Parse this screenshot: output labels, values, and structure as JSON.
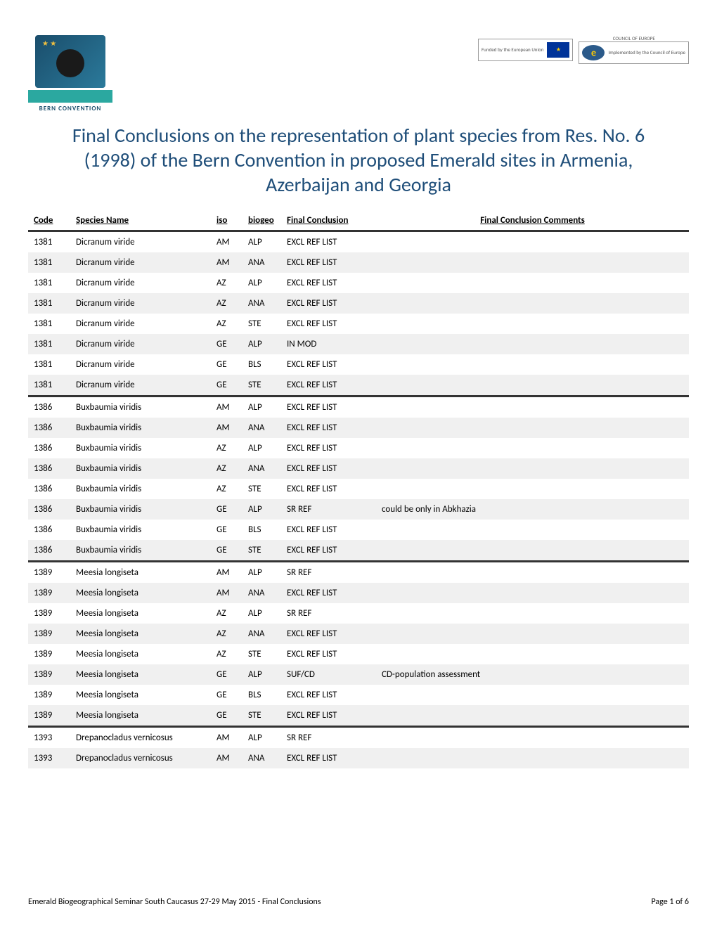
{
  "logos": {
    "left_text": "BERN CONVENTION",
    "right_funded_label": "Funded\nby the European Union",
    "right_coe_top": "COUNCIL OF EUROPE",
    "right_implemented_label": "Implemented\nby the Council of Europe"
  },
  "title": "Final Conclusions on the representation of plant species from Res. No. 6 (1998) of the Bern Convention in proposed Emerald sites in Armenia, Azerbaijan and Georgia",
  "table": {
    "headers": {
      "code": "Code",
      "species": "Species Name",
      "iso": "iso",
      "biogeo": "biogeo",
      "conclusion": "Final Conclusion",
      "comments": "Final Conclusion Comments"
    },
    "rows": [
      {
        "code": "1381",
        "species": "Dicranum viride",
        "iso": "AM",
        "biogeo": "ALP",
        "conclusion": "EXCL REF LIST",
        "comments": "",
        "groupStart": true
      },
      {
        "code": "1381",
        "species": "Dicranum viride",
        "iso": "AM",
        "biogeo": "ANA",
        "conclusion": "EXCL REF LIST",
        "comments": ""
      },
      {
        "code": "1381",
        "species": "Dicranum viride",
        "iso": "AZ",
        "biogeo": "ALP",
        "conclusion": "EXCL REF LIST",
        "comments": ""
      },
      {
        "code": "1381",
        "species": "Dicranum viride",
        "iso": "AZ",
        "biogeo": "ANA",
        "conclusion": "EXCL REF LIST",
        "comments": ""
      },
      {
        "code": "1381",
        "species": "Dicranum viride",
        "iso": "AZ",
        "biogeo": "STE",
        "conclusion": "EXCL REF LIST",
        "comments": ""
      },
      {
        "code": "1381",
        "species": "Dicranum viride",
        "iso": "GE",
        "biogeo": "ALP",
        "conclusion": "IN MOD",
        "comments": ""
      },
      {
        "code": "1381",
        "species": "Dicranum viride",
        "iso": "GE",
        "biogeo": "BLS",
        "conclusion": "EXCL REF LIST",
        "comments": ""
      },
      {
        "code": "1381",
        "species": "Dicranum viride",
        "iso": "GE",
        "biogeo": "STE",
        "conclusion": "EXCL REF LIST",
        "comments": ""
      },
      {
        "code": "1386",
        "species": "Buxbaumia viridis",
        "iso": "AM",
        "biogeo": "ALP",
        "conclusion": "EXCL REF LIST",
        "comments": "",
        "groupStart": true
      },
      {
        "code": "1386",
        "species": "Buxbaumia viridis",
        "iso": "AM",
        "biogeo": "ANA",
        "conclusion": "EXCL REF LIST",
        "comments": ""
      },
      {
        "code": "1386",
        "species": "Buxbaumia viridis",
        "iso": "AZ",
        "biogeo": "ALP",
        "conclusion": "EXCL REF LIST",
        "comments": ""
      },
      {
        "code": "1386",
        "species": "Buxbaumia viridis",
        "iso": "AZ",
        "biogeo": "ANA",
        "conclusion": "EXCL REF LIST",
        "comments": ""
      },
      {
        "code": "1386",
        "species": "Buxbaumia viridis",
        "iso": "AZ",
        "biogeo": "STE",
        "conclusion": "EXCL REF LIST",
        "comments": ""
      },
      {
        "code": "1386",
        "species": "Buxbaumia viridis",
        "iso": "GE",
        "biogeo": "ALP",
        "conclusion": "SR REF",
        "comments": "could be only in Abkhazia"
      },
      {
        "code": "1386",
        "species": "Buxbaumia viridis",
        "iso": "GE",
        "biogeo": "BLS",
        "conclusion": "EXCL REF LIST",
        "comments": ""
      },
      {
        "code": "1386",
        "species": "Buxbaumia viridis",
        "iso": "GE",
        "biogeo": "STE",
        "conclusion": "EXCL REF LIST",
        "comments": ""
      },
      {
        "code": "1389",
        "species": "Meesia longiseta",
        "iso": "AM",
        "biogeo": "ALP",
        "conclusion": "SR REF",
        "comments": "",
        "groupStart": true
      },
      {
        "code": "1389",
        "species": "Meesia longiseta",
        "iso": "AM",
        "biogeo": "ANA",
        "conclusion": "EXCL REF LIST",
        "comments": ""
      },
      {
        "code": "1389",
        "species": "Meesia longiseta",
        "iso": "AZ",
        "biogeo": "ALP",
        "conclusion": "SR REF",
        "comments": ""
      },
      {
        "code": "1389",
        "species": "Meesia longiseta",
        "iso": "AZ",
        "biogeo": "ANA",
        "conclusion": "EXCL REF LIST",
        "comments": ""
      },
      {
        "code": "1389",
        "species": "Meesia longiseta",
        "iso": "AZ",
        "biogeo": "STE",
        "conclusion": "EXCL REF LIST",
        "comments": ""
      },
      {
        "code": "1389",
        "species": "Meesia longiseta",
        "iso": "GE",
        "biogeo": "ALP",
        "conclusion": "SUF/CD",
        "comments": "CD-population assessment"
      },
      {
        "code": "1389",
        "species": "Meesia longiseta",
        "iso": "GE",
        "biogeo": "BLS",
        "conclusion": "EXCL REF LIST",
        "comments": ""
      },
      {
        "code": "1389",
        "species": "Meesia longiseta",
        "iso": "GE",
        "biogeo": "STE",
        "conclusion": "EXCL REF LIST",
        "comments": ""
      },
      {
        "code": "1393",
        "species": "Drepanocladus vernicosus",
        "iso": "AM",
        "biogeo": "ALP",
        "conclusion": "SR REF",
        "comments": "",
        "groupStart": true
      },
      {
        "code": "1393",
        "species": "Drepanocladus vernicosus",
        "iso": "AM",
        "biogeo": "ANA",
        "conclusion": "EXCL REF LIST",
        "comments": ""
      }
    ]
  },
  "footer": {
    "left": "Emerald Biogeographical Seminar South Caucasus 27-29 May 2015 - Final Conclusions",
    "right": "Page 1 of 6"
  },
  "styling": {
    "title_color": "#1f4e79",
    "title_fontsize": 28,
    "body_fontsize": 13,
    "row_even_bg": "#f0f0f0",
    "row_odd_bg": "#ffffff",
    "header_underline_color": "#666",
    "group_separator_color": "#333",
    "group_separator_width": 3
  }
}
